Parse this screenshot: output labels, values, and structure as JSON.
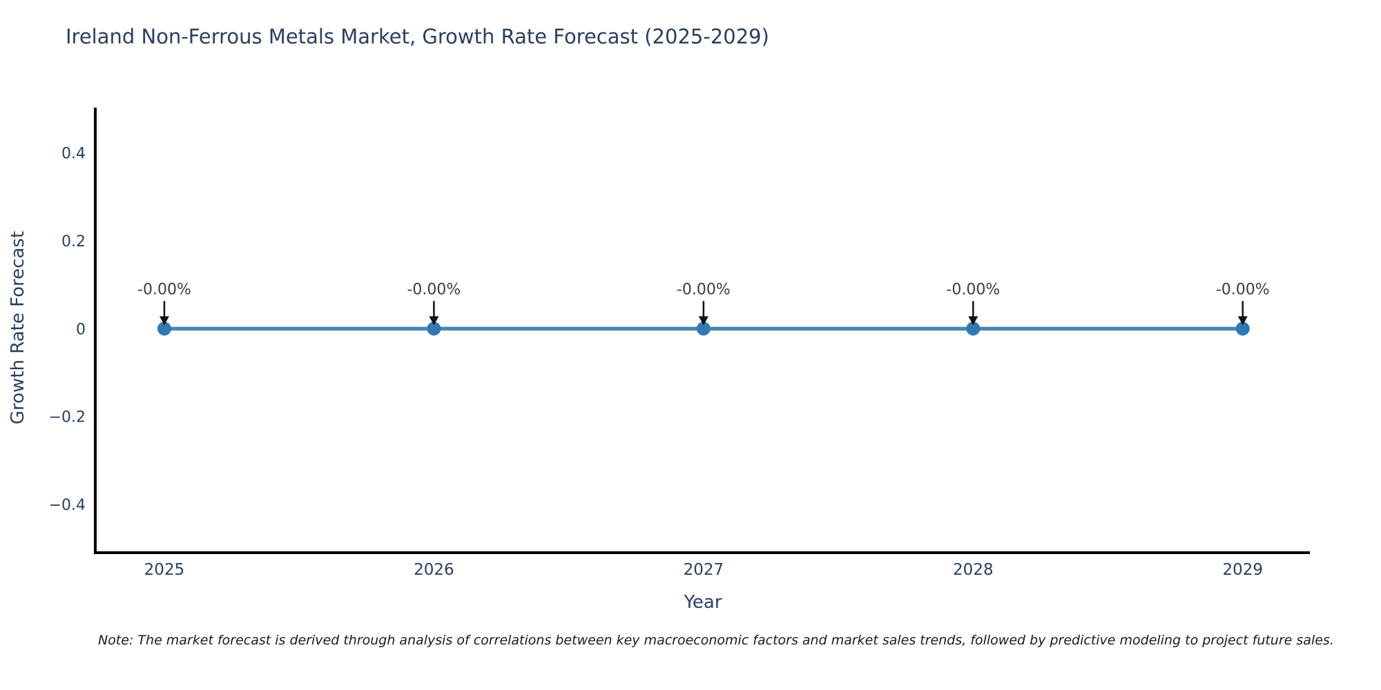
{
  "note": "Note: The market forecast is derived through analysis of correlations between key macroeconomic factors and market sales trends, followed by predictive modeling to project future sales.",
  "colors": {
    "background": "#ffffff",
    "title_text": "#2a3f5f",
    "axis_text": "#2a3f5f",
    "axis_line": "#000000",
    "line": "#4c84b2",
    "marker": "#3178b4",
    "annotation_text": "#3d3d3d",
    "arrow": "#111111"
  },
  "chart_data": {
    "type": "line",
    "title": "Ireland Non-Ferrous Metals Market, Growth Rate Forecast (2025-2029)",
    "xlabel": "Year",
    "ylabel": "Growth Rate Forecast",
    "x": [
      2025,
      2026,
      2027,
      2028,
      2029
    ],
    "series": [
      {
        "name": "Growth Rate Forecast",
        "values": [
          0,
          0,
          0,
          0,
          0
        ],
        "labels": [
          "-0.00%",
          "-0.00%",
          "-0.00%",
          "-0.00%",
          "-0.00%"
        ]
      }
    ],
    "xlim": [
      2024.744,
      2029.249
    ],
    "ylim": [
      -0.51,
      0.5
    ],
    "yticks": [
      {
        "value": -0.4,
        "label": "−0.4"
      },
      {
        "value": -0.2,
        "label": "−0.2"
      },
      {
        "value": 0,
        "label": "0"
      },
      {
        "value": 0.2,
        "label": "0.2"
      },
      {
        "value": 0.4,
        "label": "0.4"
      }
    ],
    "xticks": [
      {
        "value": 2025,
        "label": "2025"
      },
      {
        "value": 2026,
        "label": "2026"
      },
      {
        "value": 2027,
        "label": "2027"
      },
      {
        "value": 2028,
        "label": "2028"
      },
      {
        "value": 2029,
        "label": "2029"
      }
    ],
    "grid": false,
    "legend": "none",
    "marker": "circle",
    "annotation_arrows": true
  }
}
